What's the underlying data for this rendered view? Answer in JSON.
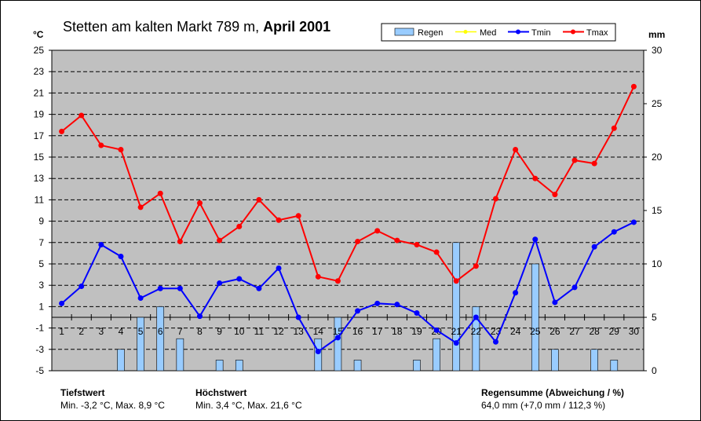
{
  "chart_data": {
    "type": "bar+line",
    "title": "Stetten am kalten Markt 789 m,",
    "title_bold": "April 2001",
    "ylabel_left": "°C",
    "ylabel_right": "mm",
    "ylim_left": [
      -5,
      25
    ],
    "ylim_right": [
      0,
      30
    ],
    "yticks_left": [
      "25",
      "23",
      "21",
      "19",
      "17",
      "15",
      "13",
      "11",
      "9",
      "7",
      "5",
      "3",
      "1",
      "-1",
      "-3",
      "-5"
    ],
    "yticks_right": [
      "30",
      "25",
      "20",
      "15",
      "10",
      "5",
      "0"
    ],
    "categories": [
      "1",
      "2",
      "3",
      "4",
      "5",
      "6",
      "7",
      "8",
      "9",
      "10",
      "11",
      "12",
      "13",
      "14",
      "15",
      "16",
      "17",
      "18",
      "19",
      "20",
      "21",
      "22",
      "23",
      "24",
      "25",
      "26",
      "27",
      "28",
      "29",
      "30"
    ],
    "legend": {
      "regen": "Regen",
      "med": "Med",
      "tmin": "Tmin",
      "tmax": "Tmax"
    },
    "series": [
      {
        "name": "Regen",
        "axis": "right",
        "kind": "bar",
        "color": "#99ccff",
        "values": [
          0,
          0,
          0,
          2,
          5,
          6,
          3,
          0,
          1,
          1,
          0,
          0,
          0,
          3,
          5,
          1,
          0,
          0,
          1,
          3,
          12,
          6,
          0,
          0,
          10,
          2,
          0,
          2,
          1,
          0
        ]
      },
      {
        "name": "Tmin",
        "axis": "left",
        "kind": "line",
        "color": "#0000ff",
        "values": [
          1.3,
          2.9,
          6.8,
          5.7,
          1.8,
          2.7,
          2.7,
          0.1,
          3.2,
          3.6,
          2.7,
          4.6,
          0.0,
          -3.2,
          -1.9,
          0.6,
          1.3,
          1.2,
          0.4,
          -1.2,
          -2.4,
          0.0,
          -2.3,
          2.3,
          7.3,
          1.4,
          2.8,
          6.6,
          8.0,
          8.9
        ]
      },
      {
        "name": "Tmax",
        "axis": "left",
        "kind": "line",
        "color": "#ff0000",
        "values": [
          17.4,
          18.9,
          16.1,
          15.7,
          10.3,
          11.6,
          7.1,
          10.7,
          7.2,
          8.5,
          11.0,
          9.1,
          9.5,
          3.8,
          3.4,
          7.1,
          8.1,
          7.2,
          6.8,
          6.1,
          3.4,
          4.8,
          11.1,
          15.7,
          13.0,
          11.5,
          14.7,
          14.4,
          17.7,
          21.6
        ]
      }
    ],
    "colors": {
      "plot_bg": "#c0c0c0",
      "med": "#ffff00"
    }
  },
  "stats": {
    "tief_head": "Tiefstwert",
    "tief_text": "Min. -3,2 °C, Max. 8,9 °C",
    "hoch_head": "Höchstwert",
    "hoch_text": "Min. 3,4 °C, Max. 21,6 °C",
    "regen_head": "Regensumme (Abweichung / %)",
    "regen_text": "64,0 mm (+7,0 mm / 112,3 %)"
  }
}
